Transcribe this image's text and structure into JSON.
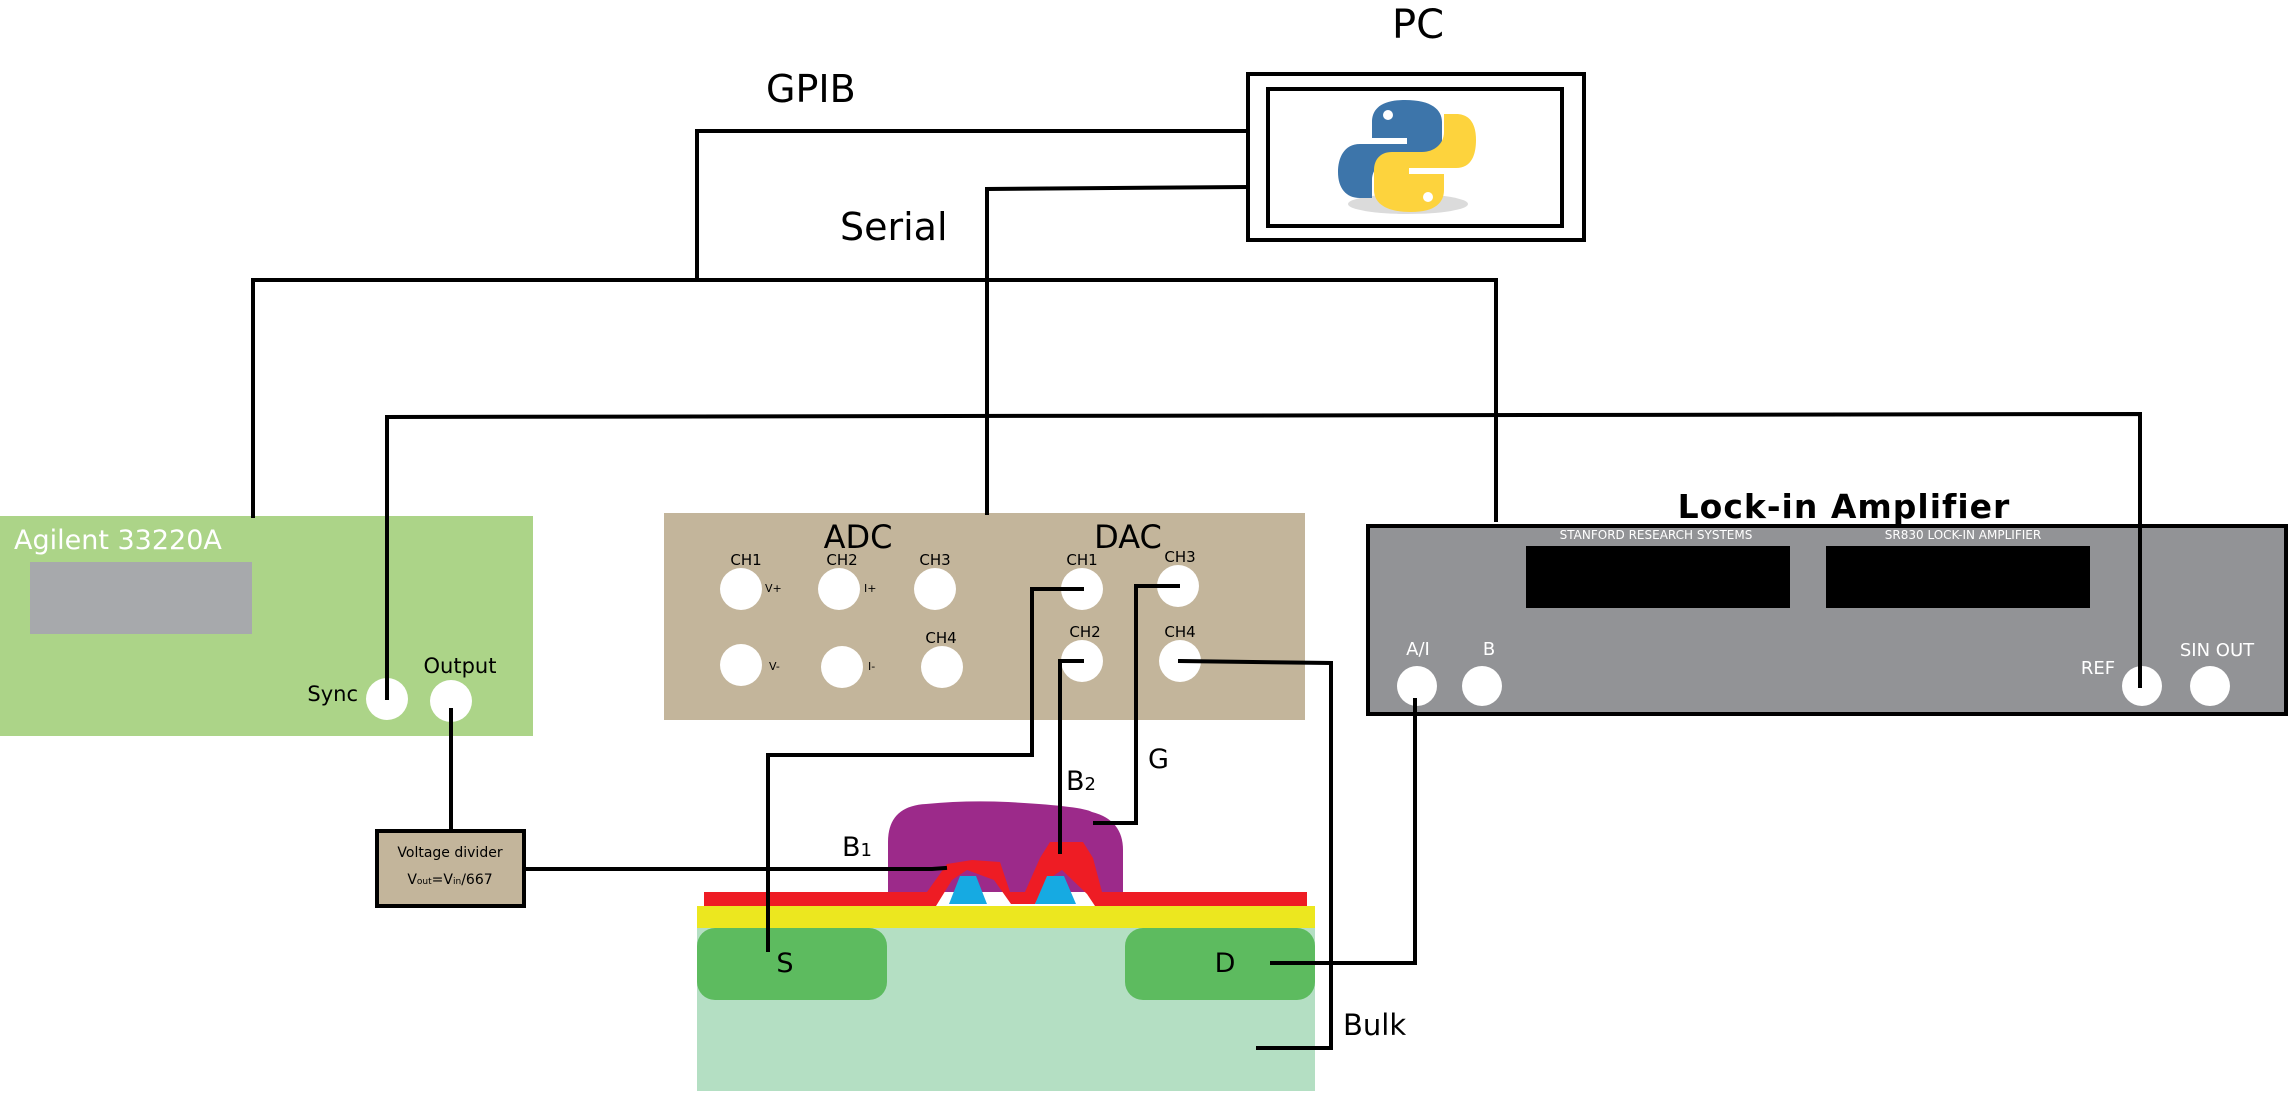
{
  "pc": {
    "title": "PC",
    "logo_icon": "python-logo-icon"
  },
  "buses": {
    "gpib": "GPIB",
    "serial": "Serial"
  },
  "function_generator": {
    "title": "Agilent 33220A",
    "sync_label": "Sync",
    "output_label": "Output",
    "color": "#acd488"
  },
  "adc_dac": {
    "adc_title": "ADC",
    "dac_title": "DAC",
    "color": "#c3b59b",
    "adc_ch1": "CH1",
    "adc_ch2": "CH2",
    "adc_ch3": "CH3",
    "adc_ch4": "CH4",
    "adc_vplus": "V+",
    "adc_iplus": "I+",
    "adc_vminus": "V-",
    "adc_iminus": "I-",
    "dac_ch1": "CH1",
    "dac_ch2": "CH2",
    "dac_ch3": "CH3",
    "dac_ch4": "CH4"
  },
  "lockin": {
    "heading": "Lock-in Amplifier",
    "brand": "STANFORD RESEARCH SYSTEMS",
    "model": "SR830 LOCK-IN AMPLIFIER",
    "input_a_label": "A/I",
    "input_b_label": "B",
    "ref_label": "REF",
    "sin_out_label": "SIN OUT",
    "color": "#929396"
  },
  "voltage_divider": {
    "line1": "Voltage divider",
    "formula_prefix": "V",
    "formula_out_sub": "out",
    "formula_mid": "=V",
    "formula_in_sub": "in",
    "formula_suffix": "/667",
    "color": "#c3b59b"
  },
  "device": {
    "source_label": "S",
    "drain_label": "D",
    "b1_main": "B",
    "b1_sub": "1",
    "b2_main": "B",
    "b2_sub": "2",
    "gate_label": "G",
    "bulk_label": "Bulk",
    "colors": {
      "substrate": "#b4dfc3",
      "contact": "#5dbb5f",
      "oxide": "#ece71f",
      "barrier_metal": "#ee1c24",
      "barrier_core": "#16aae2",
      "gate": "#9c2a8a"
    }
  }
}
